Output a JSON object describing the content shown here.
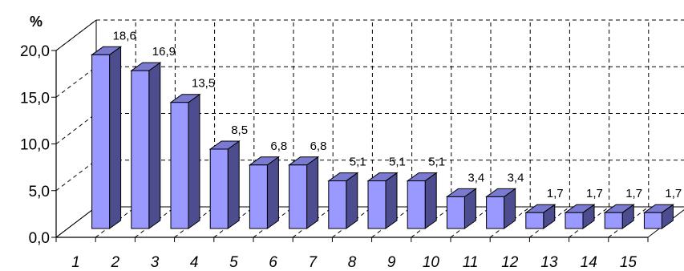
{
  "chart_data": {
    "type": "bar",
    "ylabel": "%",
    "categories": [
      "1",
      "2",
      "3",
      "4",
      "5",
      "6",
      "7",
      "8",
      "9",
      "10",
      "11",
      "12",
      "13",
      "14",
      "15"
    ],
    "values": [
      18.6,
      16.9,
      13.5,
      8.5,
      6.8,
      6.8,
      5.1,
      5.1,
      5.1,
      3.4,
      3.4,
      1.7,
      1.7,
      1.7,
      1.7
    ],
    "data_labels": [
      "18,6",
      "16,9",
      "13,5",
      "8,5",
      "6,8",
      "6,8",
      "5,1",
      "5,1",
      "5,1",
      "3,4",
      "3,4",
      "1,7",
      "1,7",
      "1,7",
      "1,7"
    ],
    "y_ticks": [
      "0,0",
      "5,0",
      "10,0",
      "15,0",
      "20,0"
    ],
    "ylim": [
      0,
      20
    ],
    "grid": true,
    "three_d": true,
    "colors": {
      "bar_front": "#9999ff",
      "bar_side": "#4c4c8f",
      "bar_top": "#7a7ad0"
    }
  }
}
